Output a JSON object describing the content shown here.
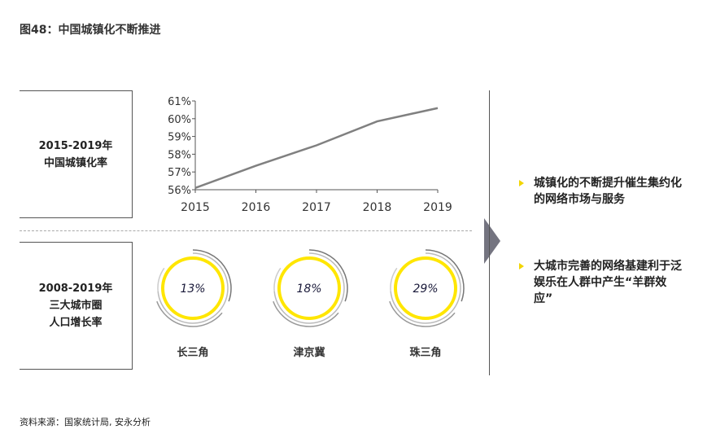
{
  "title": "图48：中国城镇化不断推进",
  "row1_label": [
    "2015-2019年",
    "中国城镇化率"
  ],
  "row2_label": [
    "2008-2019年",
    "三大城市圈",
    "人口增长率"
  ],
  "chart_data": [
    {
      "type": "line",
      "title": "中国城镇化率",
      "xlabel": "",
      "ylabel": "",
      "x": [
        "2015",
        "2016",
        "2017",
        "2018",
        "2019"
      ],
      "values": [
        56.1,
        57.35,
        58.5,
        59.85,
        60.6
      ],
      "ylim": [
        56,
        61
      ],
      "yticks": [
        "56%",
        "57%",
        "58%",
        "59%",
        "60%",
        "61%"
      ],
      "grid": false,
      "color": "#808080"
    },
    {
      "type": "pie",
      "title": "三大城市圈人口增长率",
      "categories": [
        "长三角",
        "津京冀",
        "珠三角"
      ],
      "values": [
        13,
        18,
        29
      ],
      "labels": [
        "13%",
        "18%",
        "29%"
      ],
      "color": "#ffe600"
    }
  ],
  "bullets": [
    "城镇化的不断提升催生集约化的网络市场与服务",
    "大城市完善的网络基建利于泛娱乐在人群中产生“羊群效应”"
  ],
  "source": "资料来源：国家统计局, 安永分析"
}
